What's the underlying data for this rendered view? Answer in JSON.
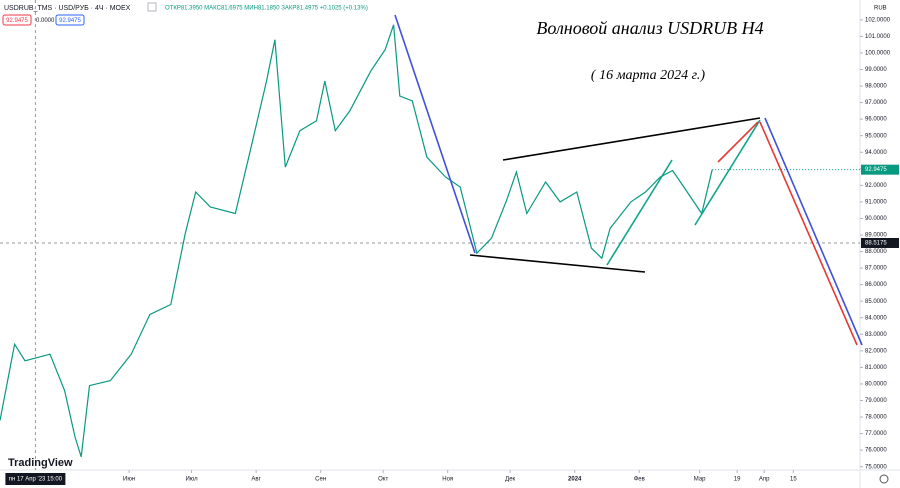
{
  "header": {
    "symbol": "USDRUB_TMS · USD/РУБ · 4Ч · MOEX",
    "ohlc": "ОТКР81.3950 МАКС81.6975 МИН81.1850 ЗАКР81.4975 +0.1025 (+0.13%)",
    "spread": "0.0000",
    "currency": "RUB",
    "logo": "TradingView"
  },
  "chart_data": {
    "type": "line",
    "title": "Волновой анализ USDRUB H4",
    "subtitle": "( 16 марта 2024 г.)",
    "crosshair": {
      "price": 88.5175,
      "time_label": "пн 17 Апр '23  15:00"
    },
    "xlim": [
      -17,
      396
    ],
    "xticks": [
      {
        "value": 45,
        "label": "Июн"
      },
      {
        "value": 75,
        "label": "Июл"
      },
      {
        "value": 106,
        "label": "Авг"
      },
      {
        "value": 137,
        "label": "Сен"
      },
      {
        "value": 167,
        "label": "Окт"
      },
      {
        "value": 198,
        "label": "Ноя"
      },
      {
        "value": 228,
        "label": "Дек"
      },
      {
        "value": 259,
        "label": "2024"
      },
      {
        "value": 290,
        "label": "Фев"
      },
      {
        "value": 319,
        "label": "Мар"
      },
      {
        "value": 337,
        "label": "19"
      },
      {
        "value": 350,
        "label": "Апр"
      },
      {
        "value": 364,
        "label": "15"
      }
    ],
    "ylim": [
      74.8,
      103.2
    ],
    "yticks": [
      {
        "value": 75,
        "label": "75.0000"
      },
      {
        "value": 76,
        "label": "76.0000"
      },
      {
        "value": 77,
        "label": "77.0000"
      },
      {
        "value": 78,
        "label": "78.0000"
      },
      {
        "value": 79,
        "label": "79.0000"
      },
      {
        "value": 80,
        "label": "80.0000"
      },
      {
        "value": 81,
        "label": "81.0000"
      },
      {
        "value": 82,
        "label": "82.0000"
      },
      {
        "value": 83,
        "label": "83.0000"
      },
      {
        "value": 84,
        "label": "84.0000"
      },
      {
        "value": 85,
        "label": "85.0000"
      },
      {
        "value": 86,
        "label": "86.0000"
      },
      {
        "value": 87,
        "label": "87.0000"
      },
      {
        "value": 88,
        "label": "88.0000"
      },
      {
        "value": 89,
        "label": "89.0000"
      },
      {
        "value": 90,
        "label": "90.0000"
      },
      {
        "value": 91,
        "label": "91.0000"
      },
      {
        "value": 92,
        "label": "92.0000"
      },
      {
        "value": 93,
        "label": "93.0000"
      },
      {
        "value": 94,
        "label": "94.0000"
      },
      {
        "value": 95,
        "label": "95.0000"
      },
      {
        "value": 96,
        "label": "96.0000"
      },
      {
        "value": 97,
        "label": "97.0000"
      },
      {
        "value": 98,
        "label": "98.0000"
      },
      {
        "value": 99,
        "label": "99.0000"
      },
      {
        "value": 100,
        "label": "100.0000"
      },
      {
        "value": 101,
        "label": "101.0000"
      },
      {
        "value": 102,
        "label": "102.0000"
      }
    ],
    "grid": false,
    "series": [
      {
        "name": "USDRUB_TMS",
        "color": "#089981",
        "x": [
          -17,
          -10,
          -5,
          7,
          14,
          19,
          22,
          26,
          36,
          46,
          55,
          65,
          72,
          77,
          84,
          96,
          103,
          111,
          115,
          120,
          127,
          135,
          139,
          144,
          151,
          161,
          168,
          172,
          175,
          181,
          188,
          197,
          204,
          212,
          219,
          226,
          231,
          236,
          245,
          252,
          260,
          267,
          272,
          276,
          286,
          293,
          300,
          306,
          313,
          320,
          325
        ],
        "values": [
          77.8,
          82.4,
          81.4,
          81.8,
          79.6,
          76.8,
          75.6,
          79.9,
          80.2,
          81.8,
          84.2,
          84.8,
          89.1,
          91.6,
          90.7,
          90.3,
          94.0,
          98.3,
          100.8,
          93.1,
          95.3,
          95.9,
          98.3,
          95.3,
          96.5,
          98.9,
          100.2,
          101.7,
          97.4,
          97.1,
          93.7,
          92.5,
          91.9,
          87.9,
          88.8,
          91.0,
          92.8,
          90.3,
          92.2,
          91.0,
          91.6,
          88.2,
          87.6,
          89.4,
          91.0,
          91.6,
          92.5,
          92.9,
          91.6,
          90.3,
          92.9475
        ]
      }
    ]
  }
}
